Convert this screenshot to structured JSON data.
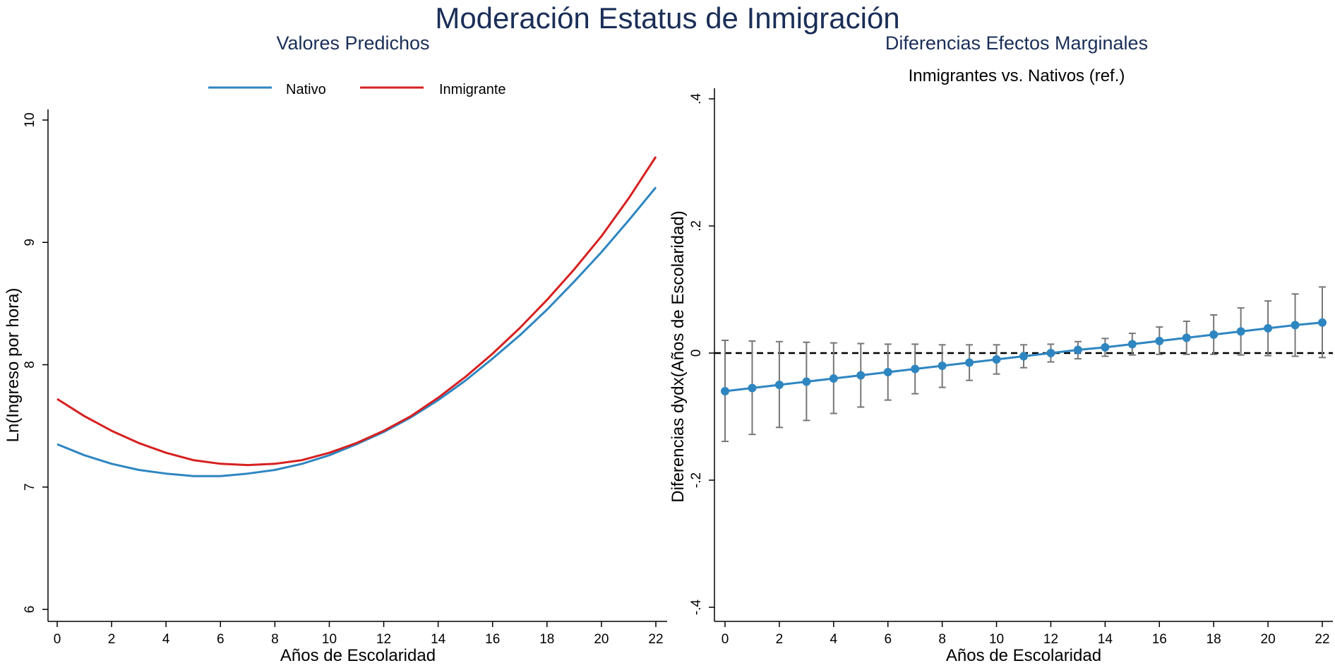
{
  "title": "Moderación Estatus de Inmigración",
  "chart_data": [
    {
      "type": "line",
      "title": "Valores Predichos",
      "xlabel": "Años de Escolaridad",
      "ylabel": "Ln(Ingreso por hora)",
      "xlim": [
        0,
        22
      ],
      "ylim": [
        6,
        10
      ],
      "xticks": [
        "0",
        "2",
        "4",
        "6",
        "8",
        "10",
        "12",
        "14",
        "16",
        "18",
        "20",
        "22"
      ],
      "yticks": [
        "6",
        "7",
        "8",
        "9",
        "10"
      ],
      "legend_position": "top",
      "x": [
        0,
        1,
        2,
        3,
        4,
        5,
        6,
        7,
        8,
        9,
        10,
        11,
        12,
        13,
        14,
        15,
        16,
        17,
        18,
        19,
        20,
        21,
        22
      ],
      "series": [
        {
          "name": "Nativo",
          "color": "#2e86c1",
          "values": [
            7.35,
            7.26,
            7.19,
            7.14,
            7.11,
            7.09,
            7.09,
            7.11,
            7.14,
            7.19,
            7.26,
            7.35,
            7.45,
            7.57,
            7.71,
            7.87,
            8.05,
            8.24,
            8.45,
            8.68,
            8.92,
            9.18,
            9.45
          ]
        },
        {
          "name": "Inmigrante",
          "color": "#d62020",
          "values": [
            7.72,
            7.58,
            7.46,
            7.36,
            7.28,
            7.22,
            7.19,
            7.18,
            7.19,
            7.22,
            7.28,
            7.36,
            7.46,
            7.58,
            7.73,
            7.9,
            8.09,
            8.3,
            8.53,
            8.78,
            9.05,
            9.36,
            9.7
          ]
        }
      ]
    },
    {
      "type": "line",
      "title": "Diferencias Efectos Marginales",
      "subtitle": "Inmigrantes vs. Nativos (ref.)",
      "xlabel": "Años de Escolaridad",
      "ylabel": "Diferencias dydx(Años de Escolaridad)",
      "xlim": [
        0,
        22
      ],
      "ylim": [
        -0.4,
        0.4
      ],
      "xticks": [
        "0",
        "2",
        "4",
        "6",
        "8",
        "10",
        "12",
        "14",
        "16",
        "18",
        "20",
        "22"
      ],
      "yticks": [
        "-.4",
        "-.2",
        "0",
        ".2",
        ".4"
      ],
      "reference_line": 0,
      "x": [
        0,
        1,
        2,
        3,
        4,
        5,
        6,
        7,
        8,
        9,
        10,
        11,
        12,
        13,
        14,
        15,
        16,
        17,
        18,
        19,
        20,
        21,
        22
      ],
      "series": [
        {
          "color": "#2e86c1",
          "values": [
            -0.06,
            -0.055,
            -0.05,
            -0.045,
            -0.04,
            -0.035,
            -0.03,
            -0.025,
            -0.02,
            -0.015,
            -0.01,
            -0.005,
            0.0,
            0.005,
            0.009,
            0.014,
            0.019,
            0.024,
            0.029,
            0.034,
            0.039,
            0.044,
            0.048
          ],
          "ci_low": [
            -0.139,
            -0.128,
            -0.117,
            -0.106,
            -0.095,
            -0.085,
            -0.074,
            -0.064,
            -0.054,
            -0.043,
            -0.033,
            -0.023,
            -0.014,
            -0.009,
            -0.005,
            -0.003,
            -0.002,
            -0.002,
            -0.002,
            -0.003,
            -0.004,
            -0.005,
            -0.007
          ],
          "ci_high": [
            0.02,
            0.019,
            0.018,
            0.017,
            0.016,
            0.015,
            0.014,
            0.014,
            0.013,
            0.013,
            0.013,
            0.013,
            0.014,
            0.018,
            0.023,
            0.031,
            0.041,
            0.05,
            0.06,
            0.071,
            0.082,
            0.093,
            0.104
          ]
        }
      ]
    }
  ]
}
